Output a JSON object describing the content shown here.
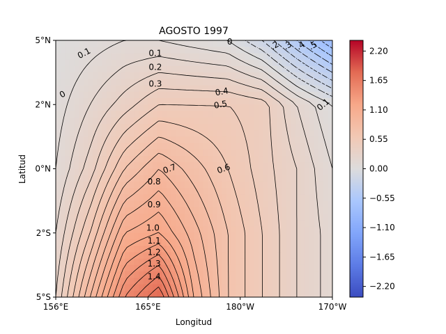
{
  "chart_data": {
    "type": "heatmap",
    "title": "AGOSTO 1997",
    "xlabel": "Longitud",
    "ylabel": "Latitud",
    "x_axis": {
      "range": [
        156,
        201
      ],
      "ticks": [
        {
          "value": 156,
          "label": "156°E"
        },
        {
          "value": 171,
          "label": "165°E"
        },
        {
          "value": 186,
          "label": "180°W"
        },
        {
          "value": 201,
          "label": "170°W"
        }
      ]
    },
    "y_axis": {
      "range": [
        -5,
        5
      ],
      "ticks": [
        {
          "value": 5,
          "label": "5°N"
        },
        {
          "value": 2.5,
          "label": "2°N"
        },
        {
          "value": 0,
          "label": "0°N"
        },
        {
          "value": -2.5,
          "label": "2°S"
        },
        {
          "value": -5,
          "label": "5°S"
        }
      ]
    },
    "grid": false,
    "colormap": {
      "name": "coolwarm",
      "range": [
        -2.4,
        2.4
      ],
      "ticks": [
        "2.20",
        "1.65",
        "1.10",
        "0.55",
        "0.00",
        "−0.55",
        "−1.10",
        "−1.65",
        "−2.20"
      ],
      "tick_values": [
        2.2,
        1.65,
        1.1,
        0.55,
        0,
        -0.55,
        -1.1,
        -1.65,
        -2.2
      ],
      "stops": [
        [
          -2.4,
          "#3b4cc0"
        ],
        [
          -1.8,
          "#5d7ce6"
        ],
        [
          -1.2,
          "#82a6fb"
        ],
        [
          -0.6,
          "#aac7fd"
        ],
        [
          0,
          "#dddcdc"
        ],
        [
          0.6,
          "#f2c8b4"
        ],
        [
          1.2,
          "#f7a889"
        ],
        [
          1.8,
          "#e36b54"
        ],
        [
          2.4,
          "#b40426"
        ]
      ]
    },
    "grid_x": [
      156,
      161.6,
      167.2,
      172.8,
      178.4,
      184,
      189.6,
      195.2,
      201
    ],
    "grid_y": [
      5,
      2.5,
      0,
      -2.5,
      -5
    ],
    "field": [
      [
        0.0,
        0.05,
        0.1,
        0.1,
        0.05,
        0.0,
        -0.2,
        -0.5,
        -0.8
      ],
      [
        0.05,
        0.2,
        0.35,
        0.5,
        0.5,
        0.5,
        0.45,
        0.2,
        0.0
      ],
      [
        0.1,
        0.35,
        0.7,
        0.9,
        0.75,
        0.6,
        0.45,
        0.3,
        0.1
      ],
      [
        0.2,
        0.6,
        1.1,
        1.2,
        0.95,
        0.7,
        0.5,
        0.3,
        0.15
      ],
      [
        0.3,
        0.9,
        1.5,
        1.8,
        1.1,
        0.7,
        0.5,
        0.3,
        0.15
      ]
    ],
    "contour_labels": [
      {
        "text": "0.1",
        "x": 160.6,
        "y": 4.5,
        "rot": -28
      },
      {
        "text": "0.1",
        "x": 172.2,
        "y": 4.5,
        "rot": 0
      },
      {
        "text": "0.2",
        "x": 172.2,
        "y": 3.95,
        "rot": 0
      },
      {
        "text": "0.3",
        "x": 172.2,
        "y": 3.3,
        "rot": 0
      },
      {
        "text": "0.4",
        "x": 183.0,
        "y": 3.0,
        "rot": -10
      },
      {
        "text": "0.5",
        "x": 182.8,
        "y": 2.5,
        "rot": -10
      },
      {
        "text": "0.6",
        "x": 183.3,
        "y": 0.0,
        "rot": -20
      },
      {
        "text": "0.7",
        "x": 174.5,
        "y": 0.0,
        "rot": -20
      },
      {
        "text": "0.8",
        "x": 172.0,
        "y": -0.5,
        "rot": 0
      },
      {
        "text": "0.9",
        "x": 172.0,
        "y": -1.4,
        "rot": 0
      },
      {
        "text": "1.0",
        "x": 171.8,
        "y": -2.3,
        "rot": 0
      },
      {
        "text": "1.1",
        "x": 172.0,
        "y": -2.8,
        "rot": 0
      },
      {
        "text": "1.2",
        "x": 172.0,
        "y": -3.25,
        "rot": 0
      },
      {
        "text": "1.3",
        "x": 172.0,
        "y": -3.7,
        "rot": 0
      },
      {
        "text": "1.4",
        "x": 172.0,
        "y": -4.2,
        "rot": 0
      },
      {
        "text": "0",
        "x": 157.1,
        "y": 2.9,
        "rot": -30
      },
      {
        "text": "0",
        "x": 184.3,
        "y": 4.95,
        "rot": 0
      },
      {
        "text": ".2",
        "x": 191.6,
        "y": 4.8,
        "rot": -30
      },
      {
        "text": ".3",
        "x": 193.7,
        "y": 4.8,
        "rot": -30
      },
      {
        "text": ".4",
        "x": 195.8,
        "y": 4.8,
        "rot": -30
      },
      {
        "text": ".5",
        "x": 197.8,
        "y": 4.8,
        "rot": -30
      },
      {
        "text": "0.1",
        "x": 199.5,
        "y": 2.5,
        "rot": -40
      }
    ]
  }
}
